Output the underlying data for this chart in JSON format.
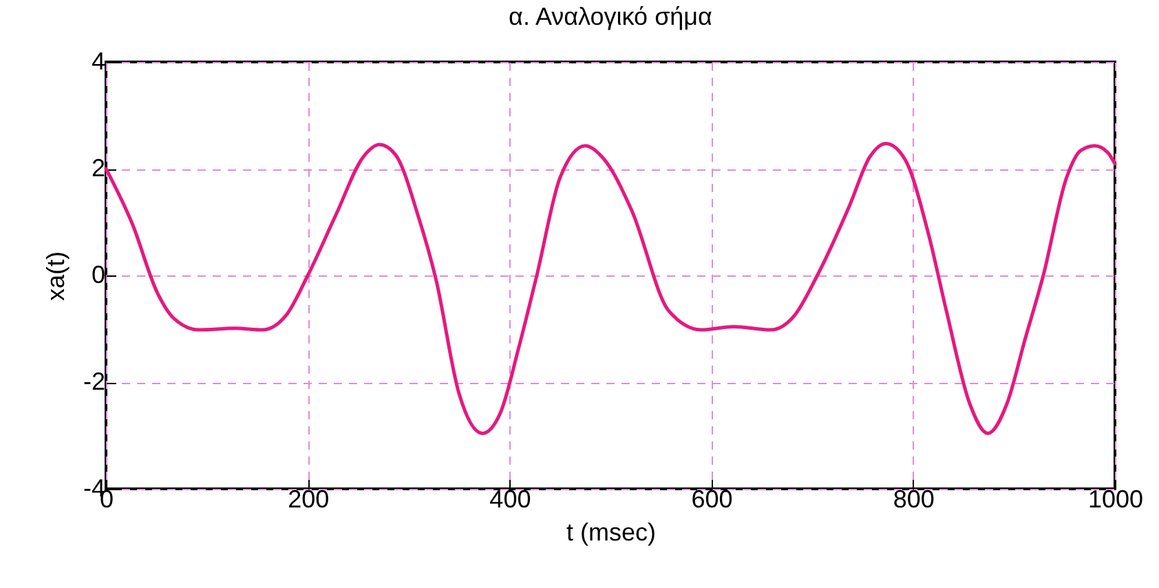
{
  "chart_data": {
    "type": "line",
    "title": "α. Αναλογικό σήμα",
    "xlabel": "t (msec)",
    "ylabel": "xa(t)",
    "x": [
      0,
      26,
      51,
      67,
      92,
      128,
      155,
      178,
      200,
      228,
      255,
      271,
      287,
      309,
      327,
      350,
      373,
      391,
      409,
      427,
      450,
      475,
      494,
      521,
      558,
      590,
      622,
      659,
      682,
      705,
      737,
      757,
      773,
      792,
      815,
      833,
      856,
      874,
      893,
      911,
      929,
      952,
      966,
      980,
      993,
      1000
    ],
    "series": [
      {
        "color": "#e5197f",
        "values": [
          2.0,
          0.97,
          -0.33,
          -0.8,
          -1.02,
          -0.99,
          -1.02,
          -0.76,
          0,
          1.14,
          2.22,
          2.45,
          2.26,
          1.14,
          -0.07,
          -2.22,
          -2.96,
          -2.57,
          -1.36,
          0,
          1.83,
          2.43,
          2.17,
          1.22,
          -0.67,
          -1.02,
          -0.96,
          -1.02,
          -0.76,
          0,
          1.31,
          2.22,
          2.47,
          2.17,
          0.79,
          -0.67,
          -2.4,
          -2.96,
          -2.4,
          -1.19,
          0,
          1.83,
          2.34,
          2.43,
          2.3,
          2.09
        ]
      }
    ],
    "xlim": [
      0,
      1000
    ],
    "xticks": [
      0,
      200,
      400,
      600,
      800,
      1000
    ],
    "ylim": [
      -4,
      4
    ],
    "yticks": [
      -4,
      -2,
      0,
      2,
      4
    ],
    "grid": true,
    "marker": "none",
    "line_style": "solid"
  }
}
